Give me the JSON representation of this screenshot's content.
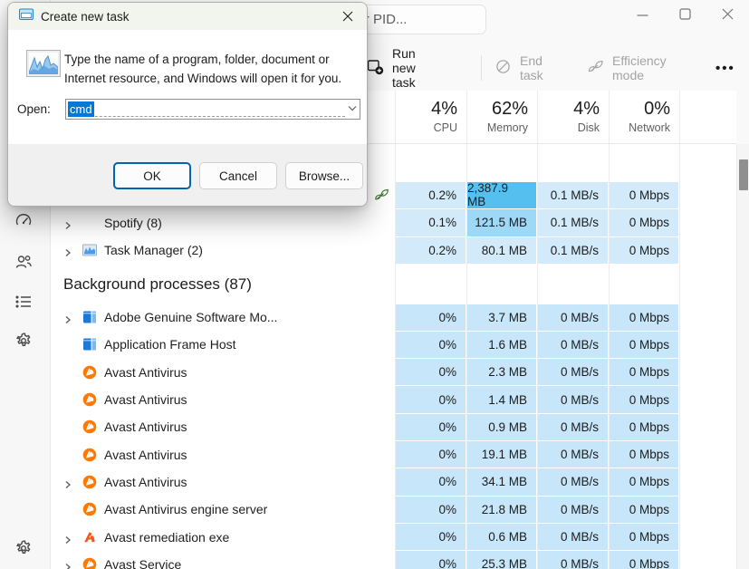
{
  "window": {
    "search_placeholder": "Type a name, publisher, or PID...",
    "controls": [
      {
        "name": "minimize"
      },
      {
        "name": "maximize"
      },
      {
        "name": "close"
      }
    ]
  },
  "toolbar": {
    "run_new_task": "Run new task",
    "end_task": "End task",
    "efficiency_mode": "Efficiency mode",
    "more": "•••"
  },
  "table": {
    "columns": [
      {
        "pct": "4%",
        "label": "CPU"
      },
      {
        "pct": "62%",
        "label": "Memory"
      },
      {
        "pct": "4%",
        "label": "Disk"
      },
      {
        "pct": "0%",
        "label": "Network"
      }
    ]
  },
  "rows": {
    "apps": [
      {
        "name": "",
        "chevron": false,
        "icon": "",
        "status_leaf": true,
        "cpu": "0.2%",
        "memory": "2,387.9 MB",
        "disk": "0.1 MB/s",
        "network": "0 Mbps",
        "mem_heat": "high"
      },
      {
        "name": "Spotify (8)",
        "chevron": true,
        "icon": "",
        "cpu": "0.1%",
        "memory": "121.5 MB",
        "disk": "0.1 MB/s",
        "network": "0 Mbps",
        "mem_heat": "mid"
      },
      {
        "name": "Task Manager (2)",
        "chevron": true,
        "icon": "taskmgr",
        "cpu": "0.2%",
        "memory": "80.1 MB",
        "disk": "0.1 MB/s",
        "network": "0 Mbps",
        "mem_heat": ""
      }
    ],
    "background_header": "Background processes (87)",
    "background": [
      {
        "name": "Adobe Genuine Software Mo...",
        "chevron": true,
        "icon": "app-window",
        "cpu": "0%",
        "memory": "3.7 MB",
        "disk": "0 MB/s",
        "network": "0 Mbps"
      },
      {
        "name": "Application Frame Host",
        "chevron": false,
        "icon": "app-window",
        "cpu": "0%",
        "memory": "1.6 MB",
        "disk": "0 MB/s",
        "network": "0 Mbps"
      },
      {
        "name": "Avast Antivirus",
        "chevron": false,
        "icon": "avast",
        "cpu": "0%",
        "memory": "2.3 MB",
        "disk": "0 MB/s",
        "network": "0 Mbps"
      },
      {
        "name": "Avast Antivirus",
        "chevron": false,
        "icon": "avast",
        "cpu": "0%",
        "memory": "1.4 MB",
        "disk": "0 MB/s",
        "network": "0 Mbps"
      },
      {
        "name": "Avast Antivirus",
        "chevron": false,
        "icon": "avast",
        "cpu": "0%",
        "memory": "0.9 MB",
        "disk": "0 MB/s",
        "network": "0 Mbps"
      },
      {
        "name": "Avast Antivirus",
        "chevron": false,
        "icon": "avast",
        "cpu": "0%",
        "memory": "19.1 MB",
        "disk": "0 MB/s",
        "network": "0 Mbps"
      },
      {
        "name": "Avast Antivirus",
        "chevron": true,
        "icon": "avast",
        "cpu": "0%",
        "memory": "34.1 MB",
        "disk": "0 MB/s",
        "network": "0 Mbps"
      },
      {
        "name": "Avast Antivirus engine server",
        "chevron": false,
        "icon": "avast",
        "cpu": "0%",
        "memory": "21.8 MB",
        "disk": "0 MB/s",
        "network": "0 Mbps"
      },
      {
        "name": "Avast remediation exe",
        "chevron": true,
        "icon": "avast-legacy",
        "cpu": "0%",
        "memory": "0.6 MB",
        "disk": "0 MB/s",
        "network": "0 Mbps"
      },
      {
        "name": "Avast Service",
        "chevron": true,
        "icon": "avast",
        "cpu": "0%",
        "memory": "25.3 MB",
        "disk": "0 MB/s",
        "network": "0 Mbps"
      }
    ]
  },
  "dialog": {
    "title": "Create new task",
    "message_line1": "Type the name of a program, folder, document or",
    "message_line2": "Internet resource, and Windows will open it for you.",
    "open_label": "Open:",
    "input_value": "cmd",
    "buttons": {
      "ok": "OK",
      "cancel": "Cancel",
      "browse": "Browse..."
    }
  },
  "icons": {
    "sidebar": [
      "performance-icon",
      "users-icon",
      "details-icon",
      "services-icon",
      "settings-icon"
    ],
    "toolbar": [
      "run-new-task-icon",
      "end-task-icon",
      "efficiency-mode-icon",
      "more-icon"
    ],
    "status": [
      "leaf-icon"
    ]
  },
  "colors": {
    "selection_blue": "#0078d7",
    "ok_border_blue": "#0064b0",
    "heat_app_row": "#d2eafa",
    "heat_bg_row": "#c8e6fa",
    "heat_mem_high": "#55c0f0",
    "heat_mem_mid": "#9dd8f7",
    "avast_orange": "#ff7800",
    "leaf_green": "#3e7d32"
  }
}
